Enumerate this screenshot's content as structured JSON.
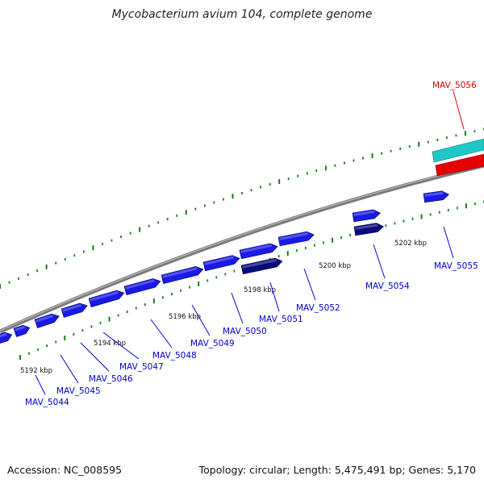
{
  "title": "Mycobacterium avium 104, complete genome",
  "footer": {
    "accession": "Accession: NC_008595",
    "summary": "Topology: circular; Length: 5,475,491 bp; Genes: 5,170"
  },
  "colors": {
    "backbone": "#808080",
    "gene_forward": "#1a1ae6",
    "gene_dark": "#0a0a7a",
    "gene_highlight": "#e60000",
    "gene_cyan": "#1ec8c8",
    "tick": "#1a7a1a",
    "label_blue": "#0000cc",
    "label_red": "#dd0000"
  },
  "scale_labels": [
    "5192 kbp",
    "5194 kbp",
    "5196 kbp",
    "5198 kbp",
    "5200 kbp",
    "5202 kbp"
  ],
  "genes": [
    {
      "name": "MAV_5044"
    },
    {
      "name": "MAV_5045"
    },
    {
      "name": "MAV_5046"
    },
    {
      "name": "MAV_5047"
    },
    {
      "name": "MAV_5048"
    },
    {
      "name": "MAV_5049"
    },
    {
      "name": "MAV_5050"
    },
    {
      "name": "MAV_5051"
    },
    {
      "name": "MAV_5052"
    },
    {
      "name": "MAV_5054"
    },
    {
      "name": "MAV_5055"
    },
    {
      "name": "MAV_5056"
    }
  ]
}
